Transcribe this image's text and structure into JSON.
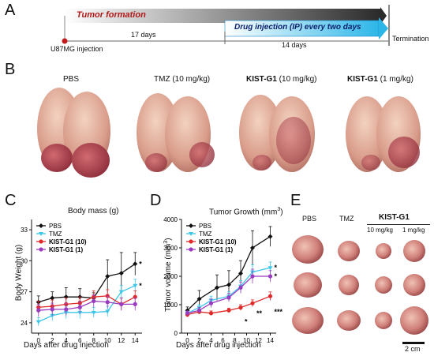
{
  "panel_labels": {
    "a": "A",
    "b": "B",
    "c": "C",
    "d": "D",
    "e": "E"
  },
  "timeline": {
    "start_label": "U87MG injection",
    "tumor_formation": "Tumor formation",
    "days_a": "17 days",
    "drug_injection": "Drug injection (IP) every two days",
    "days_b": "14 days",
    "end_label": "Termination"
  },
  "photos": {
    "groups": [
      {
        "name": "PBS",
        "bold_part": "",
        "rest": "PBS"
      },
      {
        "name": "TMZ (10 mg/kg)",
        "bold_part": "",
        "rest": "TMZ (10 mg/kg)"
      },
      {
        "name": "KIST-G1 (10 mg/kg)",
        "bold_part": "KIST-G1",
        "rest": " (10 mg/kg)"
      },
      {
        "name": "KIST-G1 (1 mg/kg)",
        "bold_part": "KIST-G1",
        "rest": " (1 mg/kg)"
      }
    ]
  },
  "tumors": {
    "col_pbs": "PBS",
    "col_tmz": "TMZ",
    "kist_header": "KIST-G1",
    "col_k10": "10 mg/kg",
    "col_k1": "1 mg/kg",
    "scale_bar": "2 cm"
  },
  "colors": {
    "pbs": "#111111",
    "tmz": "#3ec6e8",
    "kist10": "#e02a2a",
    "kist1": "#9a3cc0"
  },
  "chart_data": [
    {
      "type": "line",
      "title": "Body mass (g)",
      "xlabel": "Days after drug injection",
      "ylabel": "Body Weight (g)",
      "x": [
        0,
        2,
        4,
        6,
        8,
        10,
        12,
        14
      ],
      "xlim": [
        -1,
        15
      ],
      "ylim": [
        23,
        34
      ],
      "yticks": [
        24,
        27,
        30,
        33
      ],
      "legend": "top-left",
      "series": [
        {
          "name": "PBS",
          "bold": false,
          "color_key": "pbs",
          "values": [
            26.0,
            26.4,
            26.5,
            26.5,
            26.4,
            28.5,
            28.8,
            29.7
          ],
          "err": [
            0.6,
            0.6,
            0.9,
            0.8,
            0.5,
            1.6,
            2.0,
            1.1
          ]
        },
        {
          "name": "TMZ",
          "bold": false,
          "color_key": "tmz",
          "values": [
            24.1,
            24.7,
            25.0,
            25.0,
            25.0,
            25.1,
            27.0,
            27.6
          ],
          "err": [
            0.4,
            0.5,
            0.6,
            0.6,
            0.5,
            0.5,
            0.6,
            0.6
          ]
        },
        {
          "name": "KIST-G1 (10)",
          "bold": true,
          "color_key": "kist10",
          "values": [
            25.5,
            25.6,
            25.8,
            25.9,
            26.5,
            26.6,
            25.8,
            26.5
          ],
          "err": [
            0.6,
            0.6,
            0.6,
            0.6,
            0.6,
            0.6,
            0.6,
            0.6
          ]
        },
        {
          "name": "KIST-G1 (1)",
          "bold": true,
          "color_key": "kist1",
          "values": [
            25.2,
            25.3,
            25.3,
            25.5,
            26.1,
            26.0,
            25.8,
            25.8
          ],
          "err": [
            0.6,
            0.6,
            0.6,
            0.6,
            0.6,
            0.6,
            0.6,
            0.6
          ]
        }
      ],
      "annotations": [
        {
          "x": 14,
          "y": 29.7,
          "text": "*"
        },
        {
          "x": 14,
          "y": 27.6,
          "text": "*"
        }
      ]
    },
    {
      "type": "line",
      "title": "Tumor Growth (mm",
      "title_sup": "3",
      "title_end": ")",
      "xlabel": "Days after drug injection",
      "ylabel": "Tumor volume (mm",
      "ylabel_sup": "3",
      "ylabel_end": ")",
      "x": [
        0,
        2,
        4,
        6,
        8,
        10,
        12,
        14
      ],
      "xlim": [
        -1,
        15
      ],
      "ylim": [
        0,
        4000
      ],
      "yticks": [
        0,
        1000,
        2000,
        3000,
        4000
      ],
      "legend": "top-left",
      "series": [
        {
          "name": "PBS",
          "bold": false,
          "color_key": "pbs",
          "values": [
            800,
            1200,
            1600,
            1700,
            2100,
            3000,
            3400
          ],
          "x": [
            0,
            2,
            5,
            7,
            9,
            11,
            14
          ],
          "err": [
            120,
            300,
            450,
            500,
            450,
            600,
            350
          ]
        },
        {
          "name": "TMZ",
          "bold": false,
          "color_key": "tmz",
          "values": [
            700,
            900,
            1150,
            1300,
            1650,
            2150,
            2300
          ],
          "x": [
            0,
            2,
            4,
            7,
            9,
            11,
            14
          ],
          "err": [
            80,
            100,
            150,
            150,
            200,
            250,
            200
          ]
        },
        {
          "name": "KIST-G1 (10)",
          "bold": true,
          "color_key": "kist10",
          "values": [
            650,
            750,
            700,
            800,
            900,
            1050,
            1300
          ],
          "x": [
            0,
            2,
            4,
            7,
            9,
            11,
            14
          ],
          "err": [
            80,
            80,
            80,
            80,
            100,
            120,
            150
          ]
        },
        {
          "name": "KIST-G1 (1)",
          "bold": true,
          "color_key": "kist1",
          "values": [
            700,
            800,
            1050,
            1250,
            1600,
            2000,
            2000
          ],
          "x": [
            0,
            2,
            4,
            7,
            9,
            11,
            14
          ],
          "err": [
            80,
            100,
            150,
            150,
            200,
            250,
            200
          ]
        }
      ],
      "annotations": [
        {
          "x": 14,
          "y": 2300,
          "text": "*"
        },
        {
          "x": 14,
          "y": 2000,
          "text": "*"
        },
        {
          "x": 9,
          "y": 400,
          "text": "*"
        },
        {
          "x": 11,
          "y": 700,
          "text": "**"
        },
        {
          "x": 14,
          "y": 750,
          "text": "***"
        }
      ]
    }
  ]
}
